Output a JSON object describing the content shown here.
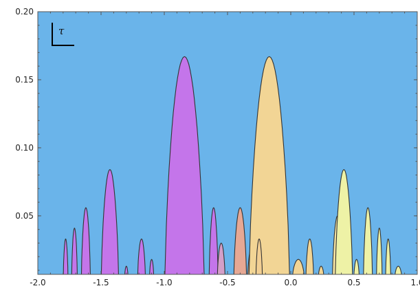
{
  "chart_data": {
    "type": "area",
    "title": "",
    "xlabel": "",
    "ylabel": "",
    "xlim": [
      -2.0,
      1.0
    ],
    "ylim": [
      0.007,
      0.2
    ],
    "x_ticks": [
      -2.0,
      -1.5,
      -1.0,
      -0.5,
      0.0,
      0.5,
      1.0
    ],
    "x_tick_labels": [
      "-2.0",
      "-1.5",
      "-1.0",
      "-0.5",
      "0.0",
      "0.5",
      "1.0"
    ],
    "y_ticks": [
      0.05,
      0.1,
      0.15,
      0.2
    ],
    "y_tick_labels": [
      "0.05",
      "0.10",
      "0.15",
      "0.20"
    ],
    "background_color": "#6ab4ea",
    "annotation": "τ",
    "grid": false,
    "series": [
      {
        "color": "#c475ea",
        "center": -1.78,
        "height": 0.033,
        "half_width": 0.018
      },
      {
        "color": "#c475ea",
        "center": -1.71,
        "height": 0.041,
        "half_width": 0.022
      },
      {
        "color": "#c475ea",
        "center": -1.62,
        "height": 0.056,
        "half_width": 0.035
      },
      {
        "color": "#c475ea",
        "center": -1.43,
        "height": 0.084,
        "half_width": 0.068
      },
      {
        "color": "#c475ea",
        "center": -1.3,
        "height": 0.013,
        "half_width": 0.012
      },
      {
        "color": "#c475ea",
        "center": -1.18,
        "height": 0.033,
        "half_width": 0.03
      },
      {
        "color": "#c475ea",
        "center": -1.1,
        "height": 0.018,
        "half_width": 0.016
      },
      {
        "color": "#c475ea",
        "center": -0.84,
        "height": 0.167,
        "half_width": 0.155
      },
      {
        "color": "#c475ea",
        "center": -0.61,
        "height": 0.056,
        "half_width": 0.035
      },
      {
        "color": "#d49fc8",
        "center": -0.55,
        "height": 0.03,
        "half_width": 0.03
      },
      {
        "color": "#e6a894",
        "center": -0.4,
        "height": 0.056,
        "half_width": 0.05
      },
      {
        "color": "#e9b892",
        "center": -0.3,
        "height": 0.03,
        "half_width": 0.04
      },
      {
        "color": "#f2d595",
        "center": -0.17,
        "height": 0.167,
        "half_width": 0.16
      },
      {
        "color": "#f2cf93",
        "center": -0.25,
        "height": 0.033,
        "half_width": 0.025
      },
      {
        "color": "#f2d595",
        "center": 0.06,
        "height": 0.018,
        "half_width": 0.045
      },
      {
        "color": "#f2d595",
        "center": 0.15,
        "height": 0.033,
        "half_width": 0.03
      },
      {
        "color": "#f2d595",
        "center": 0.24,
        "height": 0.013,
        "half_width": 0.02
      },
      {
        "color": "#f4e3a2",
        "center": 0.37,
        "height": 0.05,
        "half_width": 0.04
      },
      {
        "color": "#eef2a6",
        "center": 0.42,
        "height": 0.084,
        "half_width": 0.068
      },
      {
        "color": "#eef2a6",
        "center": 0.52,
        "height": 0.018,
        "half_width": 0.02
      },
      {
        "color": "#eef2a6",
        "center": 0.61,
        "height": 0.056,
        "half_width": 0.035
      },
      {
        "color": "#eef2a6",
        "center": 0.7,
        "height": 0.041,
        "half_width": 0.022
      },
      {
        "color": "#eef2a6",
        "center": 0.77,
        "height": 0.033,
        "half_width": 0.02
      },
      {
        "color": "#eef2a6",
        "center": 0.85,
        "height": 0.013,
        "half_width": 0.025
      }
    ]
  }
}
